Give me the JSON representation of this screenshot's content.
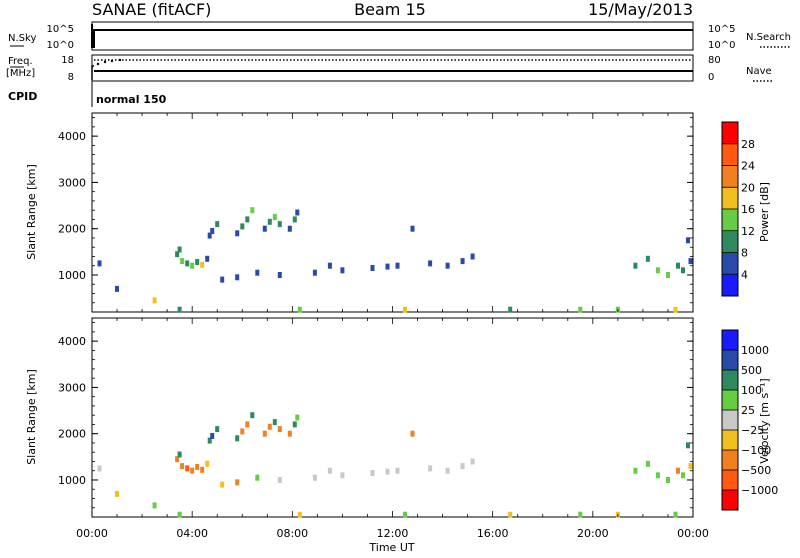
{
  "header": {
    "radar": "SANAE (fitACF)",
    "beam": "Beam 15",
    "date": "15/May/2013"
  },
  "status_panels": {
    "nsky_label": "N.Sky",
    "nsky_ticks": [
      "10^5",
      "10^0"
    ],
    "nsearch_label": "N.Search",
    "nsearch_ticks": [
      "10^5",
      "10^0"
    ],
    "freq_label": "Freq.",
    "freq_unit": "[MHz]",
    "freq_ticks": [
      "18",
      "8"
    ],
    "nave_label": "Nave",
    "nave_ticks": [
      "80",
      "0"
    ],
    "cpid_label": "CPID",
    "cpid_value": "normal 150"
  },
  "axes": {
    "x_ticks": [
      "00:00",
      "04:00",
      "08:00",
      "12:00",
      "16:00",
      "20:00",
      "00:00"
    ],
    "xlabel": "Time UT",
    "y_ticks": [
      "1000",
      "2000",
      "3000",
      "4000"
    ],
    "ylabel": "Slant Range [km]"
  },
  "power_colorbar": {
    "label": "Power [dB]",
    "ticks": [
      "4",
      "8",
      "12",
      "16",
      "20",
      "24",
      "28"
    ],
    "colors": [
      "#1a1aff",
      "#2a4aa8",
      "#2e8a5e",
      "#66cc44",
      "#f0c020",
      "#f08020",
      "#ff5a10",
      "#ff0000"
    ]
  },
  "velocity_colorbar": {
    "label": "Velocity [m s⁻¹]",
    "ticks": [
      "1000",
      "500",
      "100",
      "25",
      "−25",
      "−100",
      "−500",
      "−1000"
    ],
    "colors": [
      "#1a1aff",
      "#2a4aa8",
      "#2e8a5e",
      "#66cc44",
      "#c8c8c8",
      "#f0c020",
      "#f08020",
      "#ff5a10",
      "#ff0000"
    ]
  },
  "chart_data": [
    {
      "type": "heatmap",
      "name": "Power [dB]",
      "x_unit": "hours UT",
      "xlim": [
        0,
        24
      ],
      "ylim": [
        200,
        4500
      ],
      "cells": [
        {
          "x": 3.6,
          "y": 1300,
          "v": 12
        },
        {
          "x": 3.8,
          "y": 1250,
          "v": 8
        },
        {
          "x": 4.0,
          "y": 1200,
          "v": 14
        },
        {
          "x": 4.2,
          "y": 1280,
          "v": 10
        },
        {
          "x": 4.4,
          "y": 1220,
          "v": 16
        },
        {
          "x": 3.4,
          "y": 1450,
          "v": 10
        },
        {
          "x": 3.5,
          "y": 1550,
          "v": 8
        },
        {
          "x": 4.6,
          "y": 1350,
          "v": 6
        },
        {
          "x": 4.7,
          "y": 1850,
          "v": 6
        },
        {
          "x": 4.8,
          "y": 1950,
          "v": 7
        },
        {
          "x": 5.0,
          "y": 2100,
          "v": 8
        },
        {
          "x": 5.8,
          "y": 1900,
          "v": 6
        },
        {
          "x": 6.0,
          "y": 2050,
          "v": 8
        },
        {
          "x": 6.2,
          "y": 2200,
          "v": 10
        },
        {
          "x": 6.4,
          "y": 2400,
          "v": 14
        },
        {
          "x": 6.9,
          "y": 2000,
          "v": 6
        },
        {
          "x": 7.1,
          "y": 2150,
          "v": 9
        },
        {
          "x": 7.3,
          "y": 2250,
          "v": 12
        },
        {
          "x": 7.5,
          "y": 2100,
          "v": 8
        },
        {
          "x": 7.9,
          "y": 2000,
          "v": 6
        },
        {
          "x": 8.1,
          "y": 2200,
          "v": 8
        },
        {
          "x": 8.2,
          "y": 2350,
          "v": 6
        },
        {
          "x": 8.9,
          "y": 1050,
          "v": 6
        },
        {
          "x": 9.5,
          "y": 1200,
          "v": 5
        },
        {
          "x": 10.0,
          "y": 1100,
          "v": 6
        },
        {
          "x": 11.2,
          "y": 1150,
          "v": 5
        },
        {
          "x": 11.8,
          "y": 1180,
          "v": 6
        },
        {
          "x": 12.2,
          "y": 1200,
          "v": 5
        },
        {
          "x": 12.8,
          "y": 2000,
          "v": 7
        },
        {
          "x": 13.5,
          "y": 1250,
          "v": 5
        },
        {
          "x": 14.2,
          "y": 1200,
          "v": 6
        },
        {
          "x": 14.8,
          "y": 1300,
          "v": 5
        },
        {
          "x": 15.2,
          "y": 1400,
          "v": 6
        },
        {
          "x": 21.7,
          "y": 1200,
          "v": 8
        },
        {
          "x": 22.2,
          "y": 1350,
          "v": 10
        },
        {
          "x": 22.6,
          "y": 1100,
          "v": 12
        },
        {
          "x": 23.0,
          "y": 1000,
          "v": 14
        },
        {
          "x": 23.4,
          "y": 1200,
          "v": 10
        },
        {
          "x": 23.6,
          "y": 1100,
          "v": 8
        },
        {
          "x": 23.8,
          "y": 1750,
          "v": 6
        },
        {
          "x": 23.9,
          "y": 1300,
          "v": 7
        },
        {
          "x": 5.2,
          "y": 900,
          "v": 6
        },
        {
          "x": 5.8,
          "y": 950,
          "v": 5
        },
        {
          "x": 6.6,
          "y": 1050,
          "v": 6
        },
        {
          "x": 7.5,
          "y": 1000,
          "v": 5
        },
        {
          "x": 0.3,
          "y": 1250,
          "v": 5
        },
        {
          "x": 1.0,
          "y": 700,
          "v": 5
        },
        {
          "x": 2.5,
          "y": 450,
          "v": 18
        },
        {
          "x": 3.5,
          "y": 250,
          "v": 10
        },
        {
          "x": 8.3,
          "y": 250,
          "v": 12
        },
        {
          "x": 12.5,
          "y": 250,
          "v": 16
        },
        {
          "x": 16.7,
          "y": 250,
          "v": 9
        },
        {
          "x": 19.5,
          "y": 250,
          "v": 14
        },
        {
          "x": 21.0,
          "y": 250,
          "v": 12
        },
        {
          "x": 23.3,
          "y": 250,
          "v": 16
        }
      ]
    },
    {
      "type": "heatmap",
      "name": "Velocity [m s⁻¹]",
      "x_unit": "hours UT",
      "xlim": [
        0,
        24
      ],
      "ylim": [
        200,
        4500
      ],
      "cells": [
        {
          "x": 3.6,
          "y": 1300,
          "v": -400
        },
        {
          "x": 3.8,
          "y": 1250,
          "v": -600
        },
        {
          "x": 4.0,
          "y": 1200,
          "v": -500
        },
        {
          "x": 4.2,
          "y": 1280,
          "v": -300
        },
        {
          "x": 4.4,
          "y": 1220,
          "v": -200
        },
        {
          "x": 3.4,
          "y": 1450,
          "v": -120
        },
        {
          "x": 3.5,
          "y": 1550,
          "v": 200
        },
        {
          "x": 4.6,
          "y": 1350,
          "v": -100
        },
        {
          "x": 4.7,
          "y": 1850,
          "v": 300
        },
        {
          "x": 4.8,
          "y": 1950,
          "v": 600
        },
        {
          "x": 5.0,
          "y": 2100,
          "v": 120
        },
        {
          "x": 5.8,
          "y": 1900,
          "v": 300
        },
        {
          "x": 6.0,
          "y": 2050,
          "v": -200
        },
        {
          "x": 6.2,
          "y": 2200,
          "v": -400
        },
        {
          "x": 6.4,
          "y": 2400,
          "v": 120
        },
        {
          "x": 6.9,
          "y": 2000,
          "v": -300
        },
        {
          "x": 7.1,
          "y": 2150,
          "v": -150
        },
        {
          "x": 7.3,
          "y": 2250,
          "v": 400
        },
        {
          "x": 7.5,
          "y": 2100,
          "v": -200
        },
        {
          "x": 7.9,
          "y": 2000,
          "v": -150
        },
        {
          "x": 8.1,
          "y": 2200,
          "v": 200
        },
        {
          "x": 8.2,
          "y": 2350,
          "v": 60
        },
        {
          "x": 8.9,
          "y": 1050,
          "v": 10
        },
        {
          "x": 9.5,
          "y": 1200,
          "v": 0
        },
        {
          "x": 10.0,
          "y": 1100,
          "v": 5
        },
        {
          "x": 11.2,
          "y": 1150,
          "v": -5
        },
        {
          "x": 11.8,
          "y": 1180,
          "v": 10
        },
        {
          "x": 12.2,
          "y": 1200,
          "v": 0
        },
        {
          "x": 12.8,
          "y": 2000,
          "v": -500
        },
        {
          "x": 13.5,
          "y": 1250,
          "v": 5
        },
        {
          "x": 14.2,
          "y": 1200,
          "v": -10
        },
        {
          "x": 14.8,
          "y": 1300,
          "v": 0
        },
        {
          "x": 15.2,
          "y": 1400,
          "v": 5
        },
        {
          "x": 21.7,
          "y": 1200,
          "v": 60
        },
        {
          "x": 22.2,
          "y": 1350,
          "v": 80
        },
        {
          "x": 22.6,
          "y": 1100,
          "v": 50
        },
        {
          "x": 23.0,
          "y": 1000,
          "v": 70
        },
        {
          "x": 23.4,
          "y": 1200,
          "v": -150
        },
        {
          "x": 23.6,
          "y": 1100,
          "v": 60
        },
        {
          "x": 23.8,
          "y": 1750,
          "v": 200
        },
        {
          "x": 23.9,
          "y": 1300,
          "v": -100
        },
        {
          "x": 5.2,
          "y": 900,
          "v": -100
        },
        {
          "x": 5.8,
          "y": 950,
          "v": -120
        },
        {
          "x": 6.6,
          "y": 1050,
          "v": 60
        },
        {
          "x": 7.5,
          "y": 1000,
          "v": 5
        },
        {
          "x": 0.3,
          "y": 1250,
          "v": 0
        },
        {
          "x": 1.0,
          "y": 700,
          "v": -60
        },
        {
          "x": 2.5,
          "y": 450,
          "v": 60
        },
        {
          "x": 3.5,
          "y": 250,
          "v": 60
        },
        {
          "x": 8.3,
          "y": 250,
          "v": -100
        },
        {
          "x": 12.5,
          "y": 250,
          "v": 60
        },
        {
          "x": 16.7,
          "y": 250,
          "v": -60
        },
        {
          "x": 19.5,
          "y": 250,
          "v": 60
        },
        {
          "x": 21.0,
          "y": 250,
          "v": -60
        },
        {
          "x": 23.3,
          "y": 250,
          "v": 60
        }
      ]
    }
  ]
}
